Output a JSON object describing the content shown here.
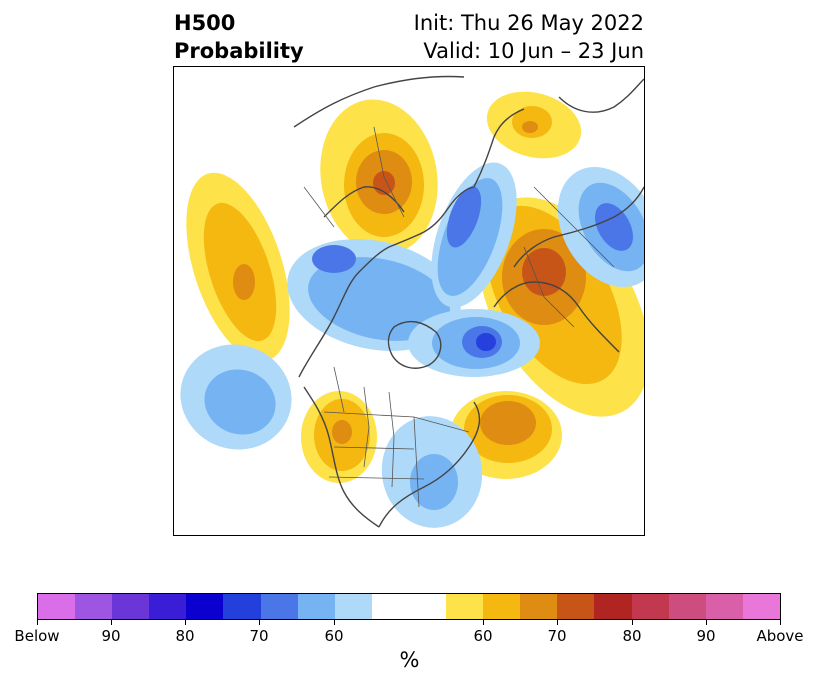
{
  "title": {
    "left_line1": "H500",
    "left_line2": "Probability",
    "right_line1": "Init: Thu 26 May 2022",
    "right_line2": "Valid: 10 Jun – 23 Jun"
  },
  "map": {
    "description_colors": {
      "above": [
        "#fde24a",
        "#f4b810",
        "#de8c12",
        "#c85518"
      ],
      "below": [
        "#aed9f9",
        "#76b3f2",
        "#4a76e8",
        "#2540dc"
      ]
    }
  },
  "colorbar": {
    "colors": [
      "#d96ee8",
      "#9d55e2",
      "#6a36d8",
      "#3a1dd6",
      "#0a00d0",
      "#2440dc",
      "#4a76e8",
      "#76b3f2",
      "#aed9f9",
      "#ffffff",
      "#ffffff",
      "#fde24a",
      "#f4b810",
      "#de8c12",
      "#c85518",
      "#b02522",
      "#c2384e",
      "#cc4d7e",
      "#d95fa8",
      "#e877d9"
    ],
    "labels": [
      "Below",
      "90",
      "80",
      "70",
      "60",
      "60",
      "70",
      "80",
      "90",
      "Above"
    ],
    "unit": "%"
  }
}
